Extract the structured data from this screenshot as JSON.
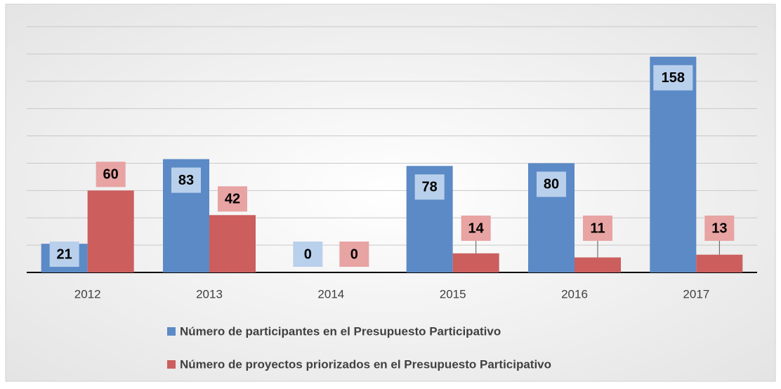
{
  "chart_data": {
    "type": "bar",
    "categories": [
      "2012",
      "2013",
      "2014",
      "2015",
      "2016",
      "2017"
    ],
    "series": [
      {
        "name": "Número de participantes en el Presupuesto Participativo",
        "color": "#5b8ac6",
        "values": [
          21,
          83,
          0,
          78,
          80,
          158
        ]
      },
      {
        "name": "Número de proyectos priorizados en el Presupuesto Participativo",
        "color": "#cc5e5e",
        "values": [
          60,
          42,
          0,
          14,
          11,
          13
        ]
      }
    ],
    "ylim": [
      0,
      180
    ],
    "yticks": [
      0,
      20,
      40,
      60,
      80,
      100,
      120,
      140,
      160,
      180
    ],
    "grid": true,
    "legend": "bottom"
  }
}
